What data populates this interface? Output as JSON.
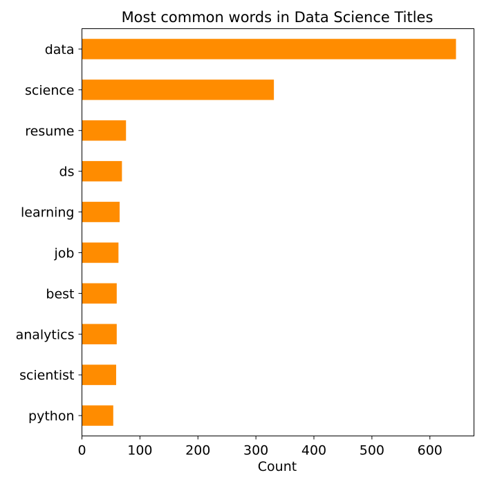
{
  "chart_data": {
    "type": "bar",
    "orientation": "horizontal",
    "title": "Most common words in Data Science Titles",
    "xlabel": "Count",
    "ylabel": "",
    "categories": [
      "data",
      "science",
      "resume",
      "ds",
      "learning",
      "job",
      "best",
      "analytics",
      "scientist",
      "python"
    ],
    "values": [
      645,
      331,
      76,
      69,
      65,
      63,
      60,
      60,
      59,
      54
    ],
    "xlim": [
      0,
      676
    ],
    "xticks": [
      0,
      100,
      200,
      300,
      400,
      500,
      600
    ],
    "bar_color": "#ff8c00",
    "grid": false,
    "legend": "none"
  }
}
